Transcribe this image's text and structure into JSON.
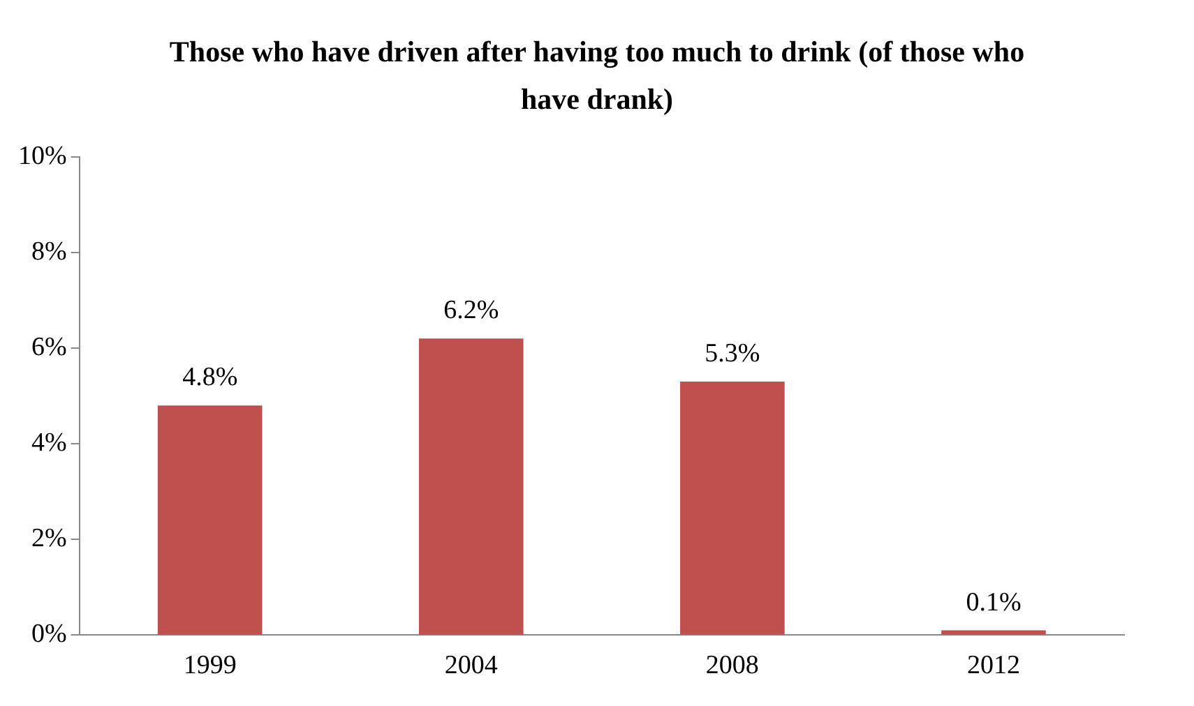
{
  "chart_data": {
    "type": "bar",
    "title": "Those who have driven after having too much to drink (of those who have drank)",
    "categories": [
      "1999",
      "2004",
      "2008",
      "2012"
    ],
    "values": [
      4.8,
      6.2,
      5.3,
      0.1
    ],
    "value_labels": [
      "4.8%",
      "6.2%",
      "5.3%",
      "0.1%"
    ],
    "color": "#c0504d",
    "ylim": [
      0,
      10
    ],
    "yticks": [
      {
        "value": 0,
        "label": "0%"
      },
      {
        "value": 2,
        "label": "2%"
      },
      {
        "value": 4,
        "label": "4%"
      },
      {
        "value": 6,
        "label": "6%"
      },
      {
        "value": 8,
        "label": "8%"
      },
      {
        "value": 10,
        "label": "10%"
      }
    ]
  }
}
